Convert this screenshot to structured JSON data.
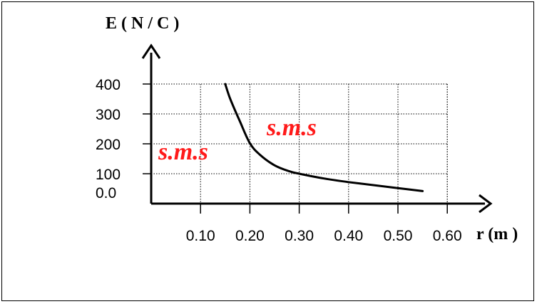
{
  "chart_data": {
    "type": "line",
    "title": "",
    "ylabel": "E ( N / C )",
    "xlabel": "r (m )",
    "y_ticks": [
      {
        "value": 0,
        "label": "0.0"
      },
      {
        "value": 100,
        "label": "100"
      },
      {
        "value": 200,
        "label": "200"
      },
      {
        "value": 300,
        "label": "300"
      },
      {
        "value": 400,
        "label": "400"
      }
    ],
    "x_ticks": [
      {
        "value": 0.1,
        "label": "0.10"
      },
      {
        "value": 0.2,
        "label": "0.20"
      },
      {
        "value": 0.3,
        "label": "0.30"
      },
      {
        "value": 0.4,
        "label": "0.40"
      },
      {
        "value": 0.5,
        "label": "0.50"
      },
      {
        "value": 0.6,
        "label": "0.60"
      }
    ],
    "xlim": [
      0,
      0.6
    ],
    "ylim": [
      0,
      400
    ],
    "grid": true,
    "series": [
      {
        "color": "#000000",
        "points": [
          {
            "x": 0.15,
            "y": 400
          },
          {
            "x": 0.16,
            "y": 351
          },
          {
            "x": 0.18,
            "y": 274
          },
          {
            "x": 0.2,
            "y": 202
          },
          {
            "x": 0.22,
            "y": 164
          },
          {
            "x": 0.25,
            "y": 128
          },
          {
            "x": 0.28,
            "y": 108
          },
          {
            "x": 0.3,
            "y": 100
          },
          {
            "x": 0.35,
            "y": 84
          },
          {
            "x": 0.4,
            "y": 72
          },
          {
            "x": 0.45,
            "y": 62
          },
          {
            "x": 0.5,
            "y": 52
          },
          {
            "x": 0.55,
            "y": 42
          }
        ]
      }
    ],
    "annotations": [
      "s.m.s",
      "s.m.s"
    ]
  },
  "colors": {
    "axis": "#000000",
    "grid": "#000000",
    "curve": "#000000",
    "watermark": "#ff1a1a"
  }
}
